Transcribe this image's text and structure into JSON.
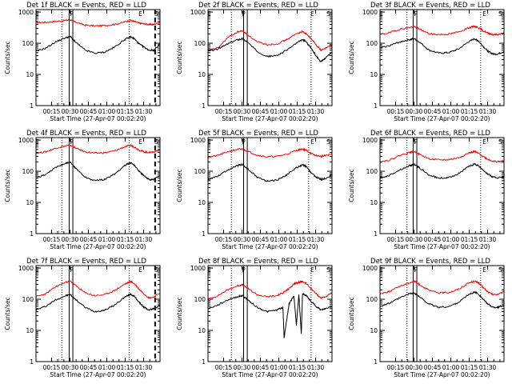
{
  "figure": {
    "background": "#ffffff",
    "axis_color": "#000000",
    "events_color": "#000000",
    "lld_color": "#ff0000"
  },
  "panels_common": {
    "ylabel": "Counts/sec",
    "xlabel": "Start Time (27-Apr-07 00:02:20)",
    "xticks": [
      "00:15",
      "00:30",
      "00:45",
      "01:00",
      "01:15",
      "01:30"
    ],
    "yticks": [
      "1",
      "10",
      "100",
      "1000"
    ]
  },
  "chart_data": [
    {
      "type": "line",
      "title": "Det 1f  BLACK = Events, RED = LLD",
      "xlabel": "Start Time (27-Apr-07 00:02:20)",
      "ylabel": "Counts/sec",
      "yscale": "log",
      "xlim_min": [
        0,
        101
      ],
      "ylim": [
        1,
        1200
      ],
      "markers": {
        "E_left": 1,
        "P": 29,
        "E_right": 85,
        "S": 98
      },
      "dotted_lines_min": [
        21,
        76
      ],
      "solid_lines_min": [
        27,
        30
      ],
      "dashed_lines_min": [
        97
      ],
      "x_min": [
        0,
        8,
        16,
        24,
        28,
        32,
        40,
        48,
        56,
        64,
        72,
        77,
        80,
        84,
        88,
        92,
        96,
        101
      ],
      "series": [
        {
          "name": "Events",
          "values": [
            55,
            70,
            110,
            150,
            165,
            110,
            60,
            48,
            52,
            75,
            130,
            160,
            140,
            95,
            75,
            60,
            60,
            95
          ]
        },
        {
          "name": "LLD",
          "values": [
            460,
            470,
            500,
            540,
            560,
            480,
            380,
            360,
            370,
            400,
            480,
            540,
            500,
            440,
            420,
            400,
            400,
            480
          ]
        }
      ]
    },
    {
      "type": "line",
      "title": "Det 2f  BLACK = Events, RED = LLD",
      "xlabel": "Start Time (27-Apr-07 00:02:20)",
      "ylabel": "Counts/sec",
      "yscale": "log",
      "xlim_min": [
        0,
        101
      ],
      "ylim": [
        1,
        1200
      ],
      "markers": {
        "E_left": 1,
        "P": 29,
        "E_right": 85,
        "S": 98
      },
      "dotted_lines_min": [
        19,
        84
      ],
      "solid_lines_min": [
        29,
        32
      ],
      "dashed_lines_min": [],
      "x_min": [
        0,
        8,
        16,
        24,
        28,
        32,
        40,
        48,
        56,
        64,
        72,
        77,
        80,
        84,
        88,
        92,
        96,
        101
      ],
      "series": [
        {
          "name": "Events",
          "values": [
            55,
            65,
            95,
            130,
            140,
            110,
            55,
            38,
            40,
            60,
            100,
            130,
            110,
            70,
            40,
            25,
            35,
            50
          ]
        },
        {
          "name": "LLD",
          "values": [
            60,
            70,
            150,
            230,
            250,
            190,
            110,
            90,
            95,
            130,
            200,
            240,
            200,
            140,
            90,
            60,
            70,
            90
          ]
        }
      ]
    },
    {
      "type": "line",
      "title": "Det 3f  BLACK = Events, RED = LLD",
      "xlabel": "Start Time (27-Apr-07 00:02:20)",
      "ylabel": "Counts/sec",
      "yscale": "log",
      "xlim_min": [
        0,
        101
      ],
      "ylim": [
        1,
        1200
      ],
      "markers": {
        "E_left": 1,
        "P": 29,
        "E_right": 85,
        "S": 98
      },
      "dotted_lines_min": [
        22,
        82
      ],
      "solid_lines_min": [
        27,
        30
      ],
      "dashed_lines_min": [],
      "x_min": [
        0,
        8,
        16,
        24,
        28,
        32,
        40,
        48,
        56,
        64,
        72,
        77,
        80,
        84,
        88,
        92,
        96,
        101
      ],
      "series": [
        {
          "name": "Events",
          "values": [
            70,
            85,
            110,
            130,
            140,
            110,
            60,
            48,
            50,
            65,
            110,
            140,
            120,
            80,
            55,
            45,
            45,
            55
          ]
        },
        {
          "name": "LLD",
          "values": [
            190,
            220,
            280,
            320,
            340,
            290,
            200,
            190,
            195,
            230,
            310,
            350,
            320,
            250,
            210,
            190,
            190,
            210
          ]
        }
      ]
    },
    {
      "type": "line",
      "title": "Det 4f  BLACK = Events, RED = LLD",
      "xlabel": "Start Time (27-Apr-07 00:02:20)",
      "ylabel": "Counts/sec",
      "yscale": "log",
      "xlim_min": [
        0,
        101
      ],
      "ylim": [
        1,
        1200
      ],
      "markers": {
        "E_left": 1,
        "P": 29,
        "E_right": 85,
        "S": 98
      },
      "dotted_lines_min": [
        21,
        76
      ],
      "solid_lines_min": [
        27,
        30
      ],
      "dashed_lines_min": [
        97
      ],
      "x_min": [
        0,
        8,
        16,
        24,
        28,
        32,
        40,
        48,
        56,
        64,
        72,
        77,
        80,
        84,
        88,
        92,
        96,
        101
      ],
      "series": [
        {
          "name": "Events",
          "values": [
            60,
            80,
            130,
            180,
            190,
            130,
            65,
            50,
            55,
            80,
            150,
            190,
            160,
            100,
            70,
            55,
            55,
            75
          ]
        },
        {
          "name": "LLD",
          "values": [
            380,
            420,
            550,
            650,
            670,
            560,
            420,
            380,
            390,
            450,
            600,
            680,
            600,
            480,
            420,
            400,
            420,
            480
          ]
        }
      ]
    },
    {
      "type": "line",
      "title": "Det 5f  BLACK = Events, RED = LLD",
      "xlabel": "Start Time (27-Apr-07 00:02:20)",
      "ylabel": "Counts/sec",
      "yscale": "log",
      "xlim_min": [
        0,
        101
      ],
      "ylim": [
        1,
        1200
      ],
      "markers": {
        "E_left": 1,
        "P": 29,
        "E_right": 85,
        "S": 98
      },
      "dotted_lines_min": [
        19,
        82
      ],
      "solid_lines_min": [
        29,
        32
      ],
      "dashed_lines_min": [],
      "x_min": [
        0,
        8,
        16,
        24,
        28,
        32,
        40,
        48,
        56,
        64,
        72,
        77,
        80,
        84,
        88,
        92,
        96,
        101
      ],
      "series": [
        {
          "name": "Events",
          "values": [
            55,
            70,
            110,
            150,
            165,
            120,
            65,
            48,
            52,
            75,
            130,
            160,
            140,
            90,
            65,
            55,
            60,
            75
          ]
        },
        {
          "name": "LLD",
          "values": [
            280,
            320,
            420,
            500,
            520,
            440,
            330,
            290,
            300,
            350,
            460,
            520,
            470,
            370,
            320,
            300,
            320,
            360
          ]
        }
      ]
    },
    {
      "type": "line",
      "title": "Det 6f  BLACK = Events, RED = LLD",
      "xlabel": "Start Time (27-Apr-07 00:02:20)",
      "ylabel": "Counts/sec",
      "yscale": "log",
      "xlim_min": [
        0,
        101
      ],
      "ylim": [
        1,
        1200
      ],
      "markers": {
        "E_left": 1,
        "P": 29,
        "E_right": 85,
        "S": 98
      },
      "dotted_lines_min": [
        22,
        82
      ],
      "solid_lines_min": [
        27,
        30
      ],
      "dashed_lines_min": [],
      "x_min": [
        0,
        8,
        16,
        24,
        28,
        32,
        40,
        48,
        56,
        64,
        72,
        77,
        80,
        84,
        88,
        92,
        96,
        101
      ],
      "series": [
        {
          "name": "Events",
          "values": [
            60,
            75,
            110,
            150,
            165,
            130,
            75,
            60,
            62,
            85,
            140,
            170,
            150,
            110,
            80,
            65,
            62,
            65
          ]
        },
        {
          "name": "LLD",
          "values": [
            200,
            230,
            320,
            400,
            430,
            350,
            250,
            230,
            235,
            270,
            380,
            430,
            380,
            300,
            240,
            210,
            205,
            210
          ]
        }
      ]
    },
    {
      "type": "line",
      "title": "Det 7f  BLACK = Events, RED = LLD",
      "xlabel": "Start Time (27-Apr-07 00:02:20)",
      "ylabel": "Counts/sec",
      "yscale": "log",
      "xlim_min": [
        0,
        101
      ],
      "ylim": [
        1,
        1200
      ],
      "markers": {
        "E_left": 1,
        "P": 29,
        "E_right": 85,
        "S": 98
      },
      "dotted_lines_min": [
        21,
        76
      ],
      "solid_lines_min": [
        27,
        30
      ],
      "dashed_lines_min": [
        97
      ],
      "x_min": [
        0,
        8,
        16,
        24,
        28,
        32,
        40,
        48,
        56,
        64,
        72,
        77,
        80,
        84,
        88,
        92,
        96,
        101
      ],
      "series": [
        {
          "name": "Events",
          "values": [
            45,
            60,
            95,
            130,
            140,
            100,
            55,
            40,
            45,
            65,
            115,
            145,
            125,
            80,
            55,
            45,
            50,
            65
          ]
        },
        {
          "name": "LLD",
          "values": [
            120,
            150,
            250,
            350,
            380,
            280,
            160,
            130,
            140,
            190,
            300,
            370,
            320,
            210,
            150,
            110,
            120,
            160
          ]
        }
      ]
    },
    {
      "type": "line",
      "title": "Det 8f  BLACK = Events, RED = LLD",
      "xlabel": "Start Time (27-Apr-07 00:02:20)",
      "ylabel": "Counts/sec",
      "yscale": "log",
      "xlim_min": [
        0,
        101
      ],
      "ylim": [
        1,
        1200
      ],
      "markers": {
        "E_left": 1,
        "P": 29,
        "E_right": 85,
        "S": 98
      },
      "dotted_lines_min": [
        19,
        84
      ],
      "solid_lines_min": [
        29,
        32
      ],
      "dashed_lines_min": [],
      "x_min": [
        0,
        8,
        16,
        24,
        28,
        32,
        40,
        48,
        56,
        61,
        62,
        66,
        70,
        72,
        74,
        76,
        77,
        80,
        84,
        88,
        92,
        96,
        101
      ],
      "series": [
        {
          "name": "Events",
          "values": [
            50,
            65,
            95,
            120,
            130,
            100,
            55,
            40,
            45,
            55,
            6,
            70,
            130,
            15,
            140,
            8,
            150,
            130,
            85,
            60,
            45,
            50,
            60
          ]
        },
        {
          "name": "LLD",
          "values": [
            100,
            130,
            200,
            270,
            290,
            230,
            140,
            120,
            130,
            160,
            170,
            220,
            310,
            330,
            350,
            360,
            370,
            320,
            220,
            150,
            110,
            120,
            160
          ]
        }
      ]
    },
    {
      "type": "line",
      "title": "Det 9f  BLACK = Events, RED = LLD",
      "xlabel": "Start Time (27-Apr-07 00:02:20)",
      "ylabel": "Counts/sec",
      "yscale": "log",
      "xlim_min": [
        0,
        101
      ],
      "ylim": [
        1,
        1200
      ],
      "markers": {
        "E_left": 1,
        "P": 29,
        "E_right": 85,
        "S": 98
      },
      "dotted_lines_min": [
        22,
        82
      ],
      "solid_lines_min": [
        27,
        30
      ],
      "dashed_lines_min": [],
      "x_min": [
        0,
        8,
        16,
        24,
        28,
        32,
        40,
        48,
        56,
        64,
        72,
        77,
        80,
        84,
        88,
        92,
        96,
        101
      ],
      "series": [
        {
          "name": "Events",
          "values": [
            60,
            75,
            110,
            150,
            160,
            120,
            70,
            55,
            58,
            80,
            140,
            170,
            150,
            100,
            70,
            55,
            55,
            65
          ]
        },
        {
          "name": "LLD",
          "values": [
            150,
            180,
            260,
            340,
            380,
            300,
            190,
            160,
            165,
            210,
            330,
            380,
            340,
            240,
            170,
            140,
            145,
            170
          ]
        }
      ]
    }
  ]
}
